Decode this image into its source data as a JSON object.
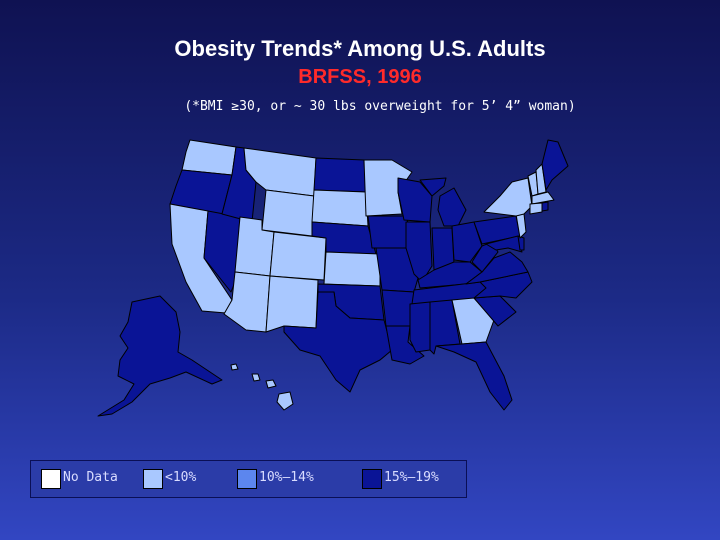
{
  "title": "Obesity Trends* Among U.S. Adults",
  "subtitle": "BRFSS, 1996",
  "note": "(*BMI ≥30, or ~ 30 lbs overweight for 5’ 4” woman)",
  "legend": [
    {
      "label": "No Data",
      "color": "#ffffff"
    },
    {
      "label": "<10%",
      "color": "#a9c8ff"
    },
    {
      "label": "10%–14%",
      "color": "#5c86ee"
    },
    {
      "label": "15%–19%",
      "color": "#0a1496"
    }
  ],
  "colors": {
    "outline": "#000000",
    "no_data": "#ffffff",
    "lt10": "#a9c8ff",
    "mid": "#5c86ee",
    "high": "#0a1496"
  }
}
